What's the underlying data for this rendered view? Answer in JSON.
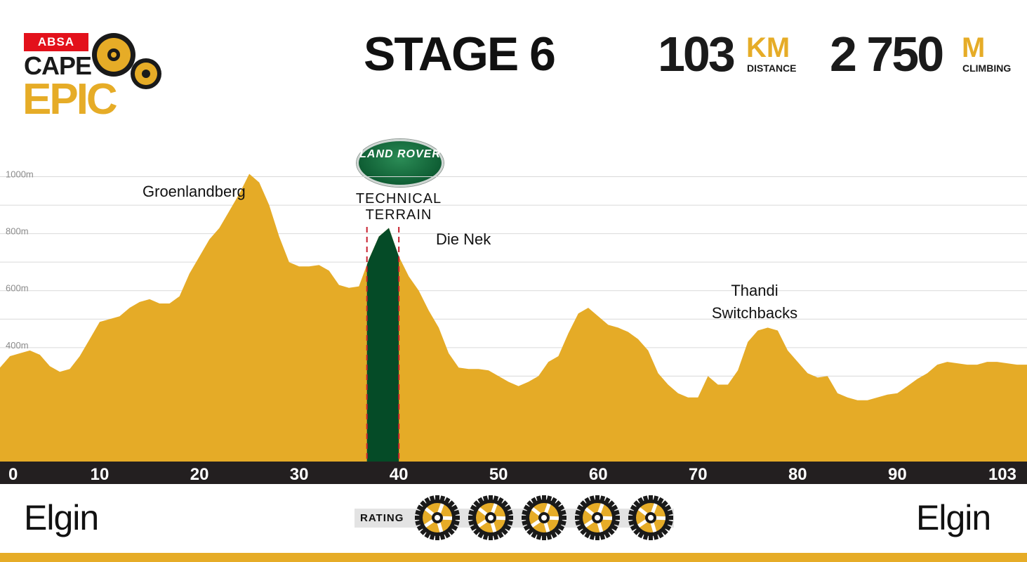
{
  "logo": {
    "brand": "ABSA",
    "line1": "CAPE",
    "line2": "EPIC"
  },
  "stage": {
    "title": "STAGE  6"
  },
  "stats": {
    "distance_value": "103",
    "distance_unit": "KM",
    "distance_label": "DISTANCE",
    "climb_value": "2 750",
    "climb_unit": "M",
    "climb_label": "CLIMBING"
  },
  "sponsor": {
    "name": "LAND ROVER",
    "label_line1": "TECHNICAL",
    "label_line2": "TERRAIN"
  },
  "route": {
    "start": "Elgin",
    "finish": "Elgin",
    "rating_label": "RATING",
    "rating": 5,
    "rating_max": 5
  },
  "colors": {
    "profile": "#e5ab27",
    "technical": "#054b27",
    "marker": "#c8202e",
    "axis_bar": "#231f20",
    "gridline": "#d9d9d9",
    "accent": "#e6ac27"
  },
  "chart_data": {
    "type": "area",
    "xlabel": "",
    "ylabel": "",
    "xlim": [
      0,
      103
    ],
    "ylim": [
      0,
      1100
    ],
    "x_ticks": [
      0,
      10,
      20,
      30,
      40,
      50,
      60,
      70,
      80,
      90,
      103
    ],
    "y_ticks": [
      400,
      600,
      800,
      1000
    ],
    "y_tick_labels": [
      "400m",
      "600m",
      "800m",
      "1000m"
    ],
    "grid": true,
    "series": [
      {
        "x": [
          0,
          1,
          2,
          3,
          4,
          5,
          6,
          7,
          8,
          9,
          10,
          11,
          12,
          13,
          14,
          15,
          16,
          17,
          18,
          19,
          20,
          21,
          22,
          23,
          24,
          25,
          26,
          27,
          28,
          29,
          30,
          31,
          32,
          33,
          34,
          35,
          36,
          37,
          38,
          39,
          40,
          41,
          42,
          43,
          44,
          45,
          46,
          47,
          48,
          49,
          50,
          51,
          52,
          53,
          54,
          55,
          56,
          57,
          58,
          59,
          60,
          61,
          62,
          63,
          64,
          65,
          66,
          67,
          68,
          69,
          70,
          71,
          72,
          73,
          74,
          75,
          76,
          77,
          78,
          79,
          80,
          81,
          82,
          83,
          84,
          85,
          86,
          87,
          88,
          89,
          90,
          91,
          92,
          93,
          94,
          95,
          96,
          97,
          98,
          99,
          100,
          101,
          102,
          103
        ],
        "y": [
          330,
          370,
          380,
          390,
          375,
          335,
          315,
          325,
          370,
          430,
          490,
          500,
          510,
          540,
          560,
          570,
          555,
          555,
          580,
          660,
          720,
          780,
          820,
          880,
          940,
          1010,
          980,
          900,
          790,
          700,
          685,
          685,
          690,
          670,
          620,
          610,
          615,
          710,
          790,
          820,
          720,
          650,
          600,
          530,
          470,
          380,
          330,
          325,
          325,
          320,
          300,
          280,
          265,
          280,
          300,
          350,
          370,
          450,
          520,
          540,
          510,
          480,
          470,
          455,
          430,
          390,
          310,
          270,
          240,
          225,
          225,
          300,
          270,
          270,
          320,
          420,
          460,
          470,
          460,
          390,
          350,
          310,
          295,
          300,
          240,
          225,
          215,
          215,
          225,
          235,
          240,
          265,
          290,
          310,
          340,
          350,
          345,
          340,
          340,
          350,
          350,
          345,
          340,
          340
        ]
      }
    ],
    "annotations": [
      {
        "text": "Groenlandberg",
        "x": 25.5
      },
      {
        "text": "Die Nek",
        "x": 40
      },
      {
        "text": "Thandi",
        "text2": "Switchbacks",
        "x": 77
      }
    ],
    "highlight": {
      "label": "TECHNICAL TERRAIN",
      "x_from": 36.8,
      "x_to": 40
    }
  }
}
